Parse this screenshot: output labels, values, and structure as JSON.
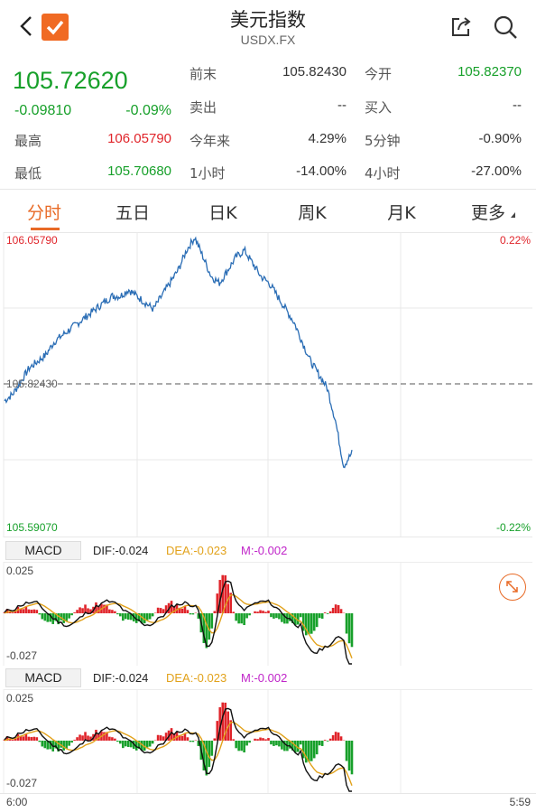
{
  "header": {
    "title": "美元指数",
    "subtitle": "USDX.FX"
  },
  "quote": {
    "price": "105.72620",
    "change": "-0.09810",
    "change_pct": "-0.09%",
    "high_label": "最高",
    "high": "106.05790",
    "low_label": "最低",
    "low": "105.70680",
    "prev_close_label": "前末",
    "prev_close": "105.82430",
    "sell_label": "卖出",
    "sell": "--",
    "ytd_label": "今年来",
    "ytd": "4.29%",
    "h1_label": "1小时",
    "h1": "-14.00%",
    "open_label": "今开",
    "open": "105.82370",
    "buy_label": "买入",
    "buy": "--",
    "m5_label": "5分钟",
    "m5": "-0.90%",
    "h4_label": "4小时",
    "h4": "-27.00%"
  },
  "tabs": [
    "分时",
    "五日",
    "日K",
    "周K",
    "月K",
    "更多"
  ],
  "chart": {
    "y_top": "106.05790",
    "y_mid": "105.82430",
    "y_bottom": "105.59070",
    "pct_top": "0.22%",
    "pct_bottom": "-0.22%",
    "x_start": "6:00",
    "x_end": "5:59"
  },
  "macd": [
    {
      "name": "MACD",
      "dif": "DIF:-0.024",
      "dea": "DEA:-0.023",
      "m": "M:-0.002",
      "top": "0.025",
      "bottom": "-0.027"
    },
    {
      "name": "MACD",
      "dif": "DIF:-0.024",
      "dea": "DEA:-0.023",
      "m": "M:-0.002",
      "top": "0.025",
      "bottom": "-0.027"
    }
  ],
  "colors": {
    "up": "#e0242a",
    "down": "#17a02a",
    "accent": "#e86a26",
    "line": "#2a6db5",
    "dea": "#e2a21b"
  },
  "chart_data": {
    "type": "line",
    "title": "",
    "xlabel": "",
    "ylabel": "",
    "x_range": [
      "6:00",
      "5:59"
    ],
    "ylim": [
      105.5907,
      106.0579
    ],
    "reference": 105.8243,
    "series": [
      {
        "values": [
          105.8,
          105.81,
          105.83,
          105.85,
          105.86,
          105.87,
          105.89,
          105.9,
          105.91,
          105.92,
          105.93,
          105.94,
          105.95,
          105.96,
          105.96,
          105.97,
          105.96,
          105.95,
          105.94,
          105.96,
          105.98,
          106.0,
          106.03,
          106.05,
          106.02,
          105.99,
          105.98,
          106.0,
          106.02,
          106.03,
          106.01,
          105.99,
          105.98,
          105.96,
          105.94,
          105.92,
          105.89,
          105.86,
          105.84,
          105.82,
          105.77,
          105.7,
          105.72
        ]
      }
    ]
  }
}
